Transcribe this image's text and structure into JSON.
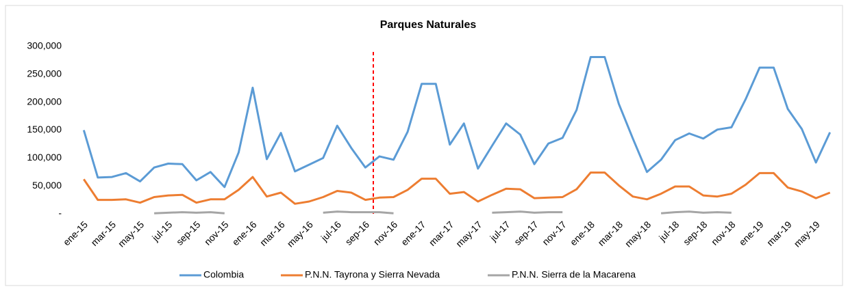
{
  "chart_data": {
    "type": "line",
    "title": "Parques Naturales",
    "categories": [
      "ene-15",
      null,
      "mar-15",
      null,
      "may-15",
      null,
      "jul-15",
      null,
      "sep-15",
      null,
      "nov-15",
      null,
      "ene-16",
      null,
      "mar-16",
      null,
      "may-16",
      null,
      "jul-16",
      null,
      "sep-16",
      null,
      "nov-16",
      null,
      "ene-17",
      null,
      "mar-17",
      null,
      "may-17",
      null,
      "jul-17",
      null,
      "sep-17",
      null,
      "nov-17",
      null,
      "ene-18",
      null,
      "mar-18",
      null,
      "may-18",
      null,
      "jul-18",
      null,
      "sep-18",
      null,
      "nov-18",
      null,
      "ene-19",
      null,
      "mar-19",
      null,
      "may-19",
      null
    ],
    "series": [
      {
        "name": "Colombia",
        "color": "#5b9bd5",
        "values": [
          150000,
          65000,
          66000,
          73000,
          58000,
          83000,
          90000,
          89000,
          60000,
          75000,
          48000,
          110000,
          226000,
          98000,
          145000,
          76000,
          88000,
          100000,
          158000,
          118000,
          83000,
          103000,
          97000,
          147000,
          233000,
          233000,
          124000,
          162000,
          81000,
          122000,
          162000,
          142000,
          89000,
          126000,
          136000,
          186000,
          281000,
          281000,
          197000,
          135000,
          75000,
          97000,
          132000,
          144000,
          135000,
          151000,
          155000,
          205000,
          262000,
          262000,
          188000,
          152000,
          92000,
          146000
        ]
      },
      {
        "name": "P.N.N. Tayrona y Sierra Nevada",
        "color": "#ed7d31",
        "values": [
          62000,
          25000,
          25000,
          26000,
          20000,
          30000,
          33000,
          34000,
          20000,
          26000,
          26000,
          43000,
          66000,
          31000,
          38000,
          18000,
          22000,
          30000,
          41000,
          38000,
          25000,
          29000,
          30000,
          43000,
          63000,
          63000,
          36000,
          39000,
          22000,
          34000,
          45000,
          44000,
          28000,
          29000,
          30000,
          44000,
          74000,
          74000,
          51000,
          31000,
          26000,
          36000,
          49000,
          49000,
          33000,
          31000,
          36000,
          52000,
          73000,
          73000,
          47000,
          40000,
          28000,
          38000
        ]
      },
      {
        "name": "P.N.N. Sierra de la Macarena",
        "color": "#a5a5a5",
        "values": [
          null,
          null,
          null,
          null,
          null,
          1000,
          2000,
          3000,
          2000,
          3000,
          1000,
          null,
          null,
          null,
          null,
          null,
          null,
          2000,
          4000,
          3000,
          3000,
          3000,
          1000,
          null,
          null,
          null,
          null,
          null,
          null,
          2000,
          3000,
          4000,
          2000,
          3000,
          3000,
          null,
          null,
          null,
          null,
          null,
          null,
          1000,
          3000,
          4000,
          2000,
          3000,
          2000,
          null,
          null,
          null,
          null,
          null,
          null,
          null
        ]
      }
    ],
    "ylim": [
      0,
      300000
    ],
    "yticks": [
      {
        "value": 0,
        "label": "-"
      },
      {
        "value": 50000,
        "label": "50,000"
      },
      {
        "value": 100000,
        "label": "100,000"
      },
      {
        "value": 150000,
        "label": "150,000"
      },
      {
        "value": 200000,
        "label": "200,000"
      },
      {
        "value": 250000,
        "label": "250,000"
      },
      {
        "value": 300000,
        "label": "300,000"
      }
    ],
    "grid": false
  }
}
